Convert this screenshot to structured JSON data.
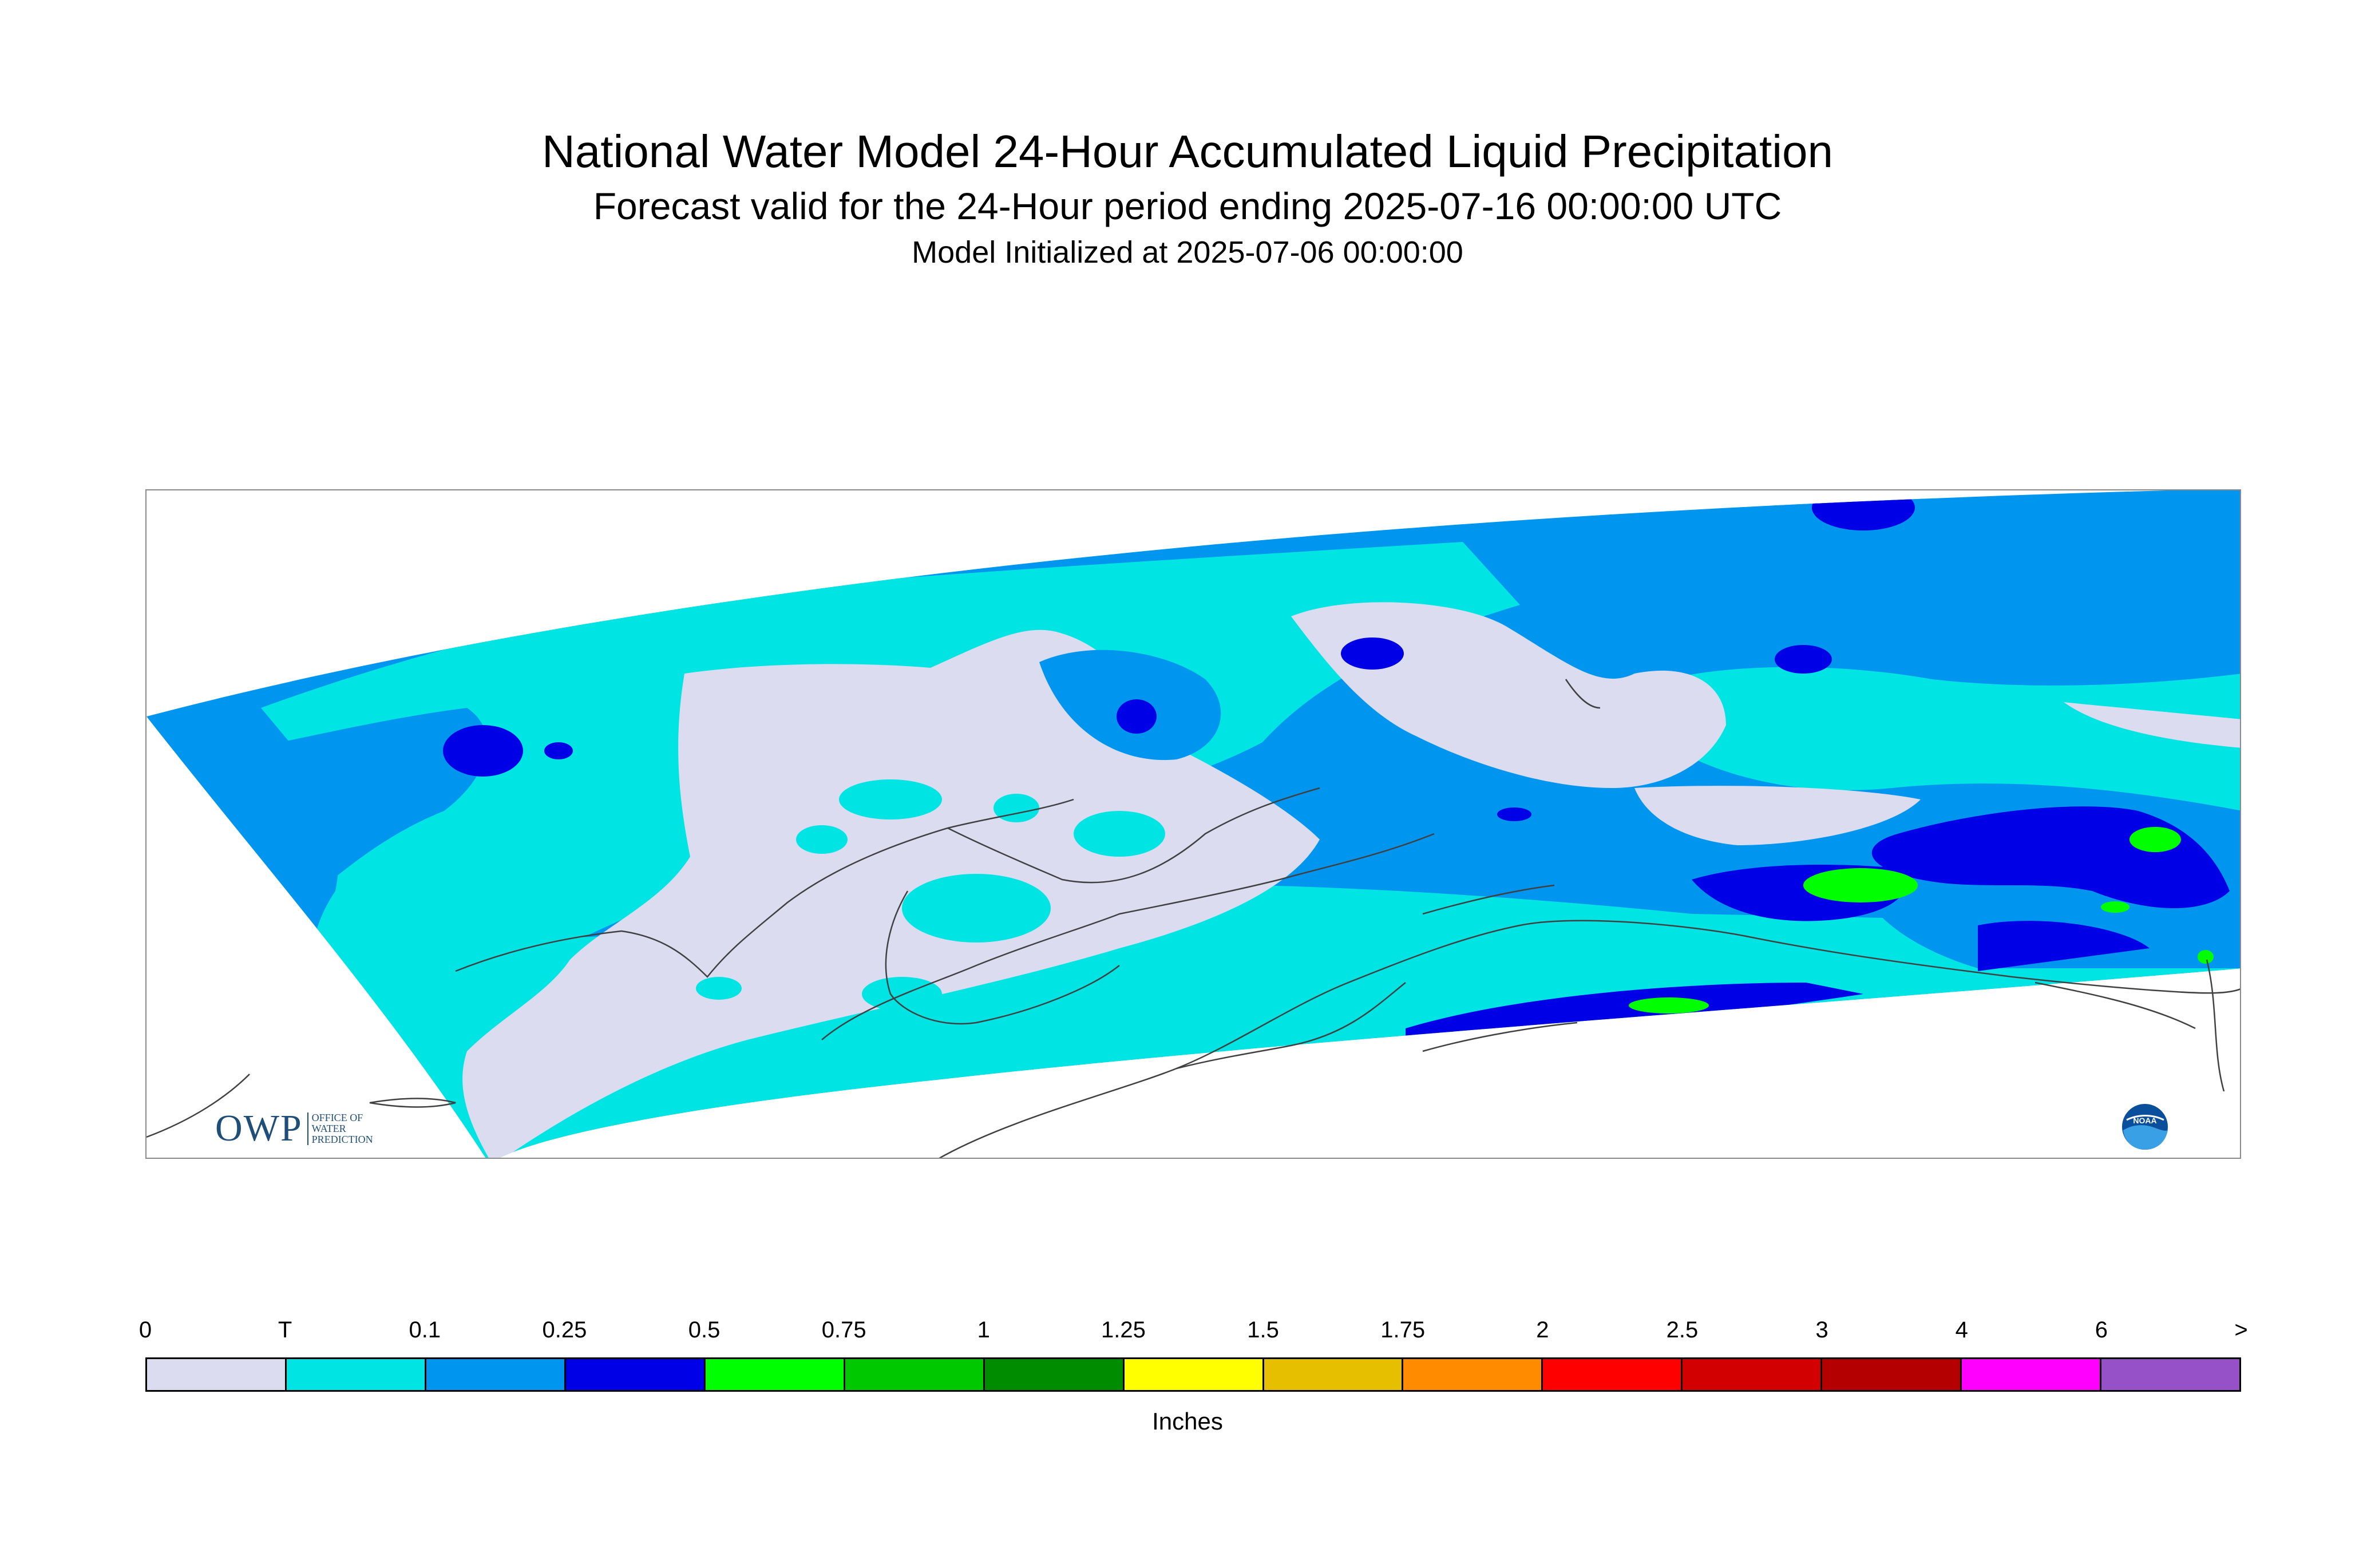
{
  "header": {
    "title": "National Water Model 24-Hour Accumulated Liquid Precipitation",
    "subtitle": "Forecast valid for the 24-Hour period ending 2025-07-16 00:00:00 UTC",
    "init": "Model Initialized at 2025-07-06 00:00:00"
  },
  "map": {
    "region": "Alaska",
    "background_color": "#ffffff",
    "coastline_color": "#404040"
  },
  "logos": {
    "owp_text": "OWP",
    "owp_small_lines": [
      "OFFICE OF",
      "WATER",
      "PREDICTION"
    ],
    "noaa_text": "NOAA"
  },
  "legend": {
    "labels": [
      "0",
      "T",
      "0.1",
      "0.25",
      "0.5",
      "0.75",
      "1",
      "1.25",
      "1.5",
      "1.75",
      "2",
      "2.5",
      "3",
      "4",
      "6",
      ">"
    ],
    "colors": [
      "#dcdcf0",
      "#00e4e4",
      "#0096f0",
      "#0000e6",
      "#00ff00",
      "#00c800",
      "#008c00",
      "#ffff00",
      "#e6c000",
      "#ff8c00",
      "#ff0000",
      "#d20000",
      "#b40000",
      "#ff00ff",
      "#9650c8"
    ],
    "units": "Inches"
  }
}
